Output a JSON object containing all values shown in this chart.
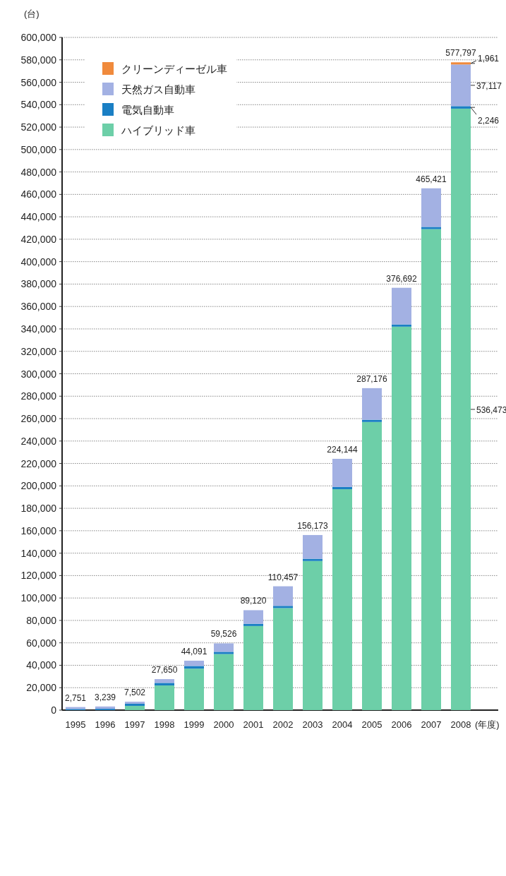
{
  "chart_data": {
    "type": "bar",
    "stacked": true,
    "xlabel": "(年度)",
    "ylabel": "(台)",
    "categories": [
      "1995",
      "1996",
      "1997",
      "1998",
      "1999",
      "2000",
      "2001",
      "2002",
      "2003",
      "2004",
      "2005",
      "2006",
      "2007",
      "2008"
    ],
    "series": [
      {
        "name": "ハイブリッド車",
        "color": "#6dcfa8",
        "values": [
          0,
          0,
          3800,
          22000,
          37000,
          50000,
          75000,
          91000,
          133000,
          197000,
          257000,
          342000,
          429000,
          536473
        ],
        "value_labels": [
          null,
          null,
          null,
          null,
          null,
          null,
          null,
          null,
          null,
          null,
          null,
          null,
          null,
          "536,473"
        ]
      },
      {
        "name": "電気自動車",
        "color": "#1a7fc4",
        "values": [
          1000,
          1200,
          1900,
          2300,
          2400,
          2000,
          2000,
          2000,
          2000,
          2000,
          2000,
          2000,
          2000,
          2246
        ],
        "value_labels": [
          null,
          null,
          null,
          null,
          null,
          null,
          null,
          null,
          null,
          null,
          null,
          null,
          null,
          "2,246"
        ]
      },
      {
        "name": "天然ガス自動車",
        "color": "#a3b1e3",
        "values": [
          1751,
          2039,
          1802,
          3350,
          4691,
          7526,
          12120,
          17457,
          21173,
          25144,
          28176,
          32692,
          34421,
          37117
        ],
        "value_labels": [
          null,
          null,
          null,
          null,
          null,
          null,
          null,
          null,
          null,
          null,
          null,
          null,
          null,
          "37,117"
        ]
      },
      {
        "name": "クリーンディーゼル車",
        "color": "#f08a3c",
        "values": [
          null,
          null,
          null,
          null,
          null,
          null,
          null,
          null,
          null,
          null,
          null,
          null,
          null,
          1961
        ],
        "value_labels": [
          null,
          null,
          null,
          null,
          null,
          null,
          null,
          null,
          null,
          null,
          null,
          null,
          null,
          "1,961"
        ]
      }
    ],
    "totals": [
      "2,751",
      "3,239",
      "7,502",
      "27,650",
      "44,091",
      "59,526",
      "89,120",
      "110,457",
      "156,173",
      "224,144",
      "287,176",
      "376,692",
      "465,421",
      "577,797"
    ],
    "ylim": [
      0,
      600000
    ],
    "yticks": [
      {
        "value": 0,
        "label": "0"
      },
      {
        "value": 20000,
        "label": "20,000"
      },
      {
        "value": 40000,
        "label": "40,000"
      },
      {
        "value": 60000,
        "label": "60,000"
      },
      {
        "value": 80000,
        "label": "80,000"
      },
      {
        "value": 100000,
        "label": "100,000"
      },
      {
        "value": 120000,
        "label": "120,000"
      },
      {
        "value": 140000,
        "label": "140,000"
      },
      {
        "value": 160000,
        "label": "160,000"
      },
      {
        "value": 180000,
        "label": "180,000"
      },
      {
        "value": 200000,
        "label": "200,000"
      },
      {
        "value": 220000,
        "label": "220,000"
      },
      {
        "value": 240000,
        "label": "240,000"
      },
      {
        "value": 260000,
        "label": "260,000"
      },
      {
        "value": 280000,
        "label": "280,000"
      },
      {
        "value": 300000,
        "label": "300,000"
      },
      {
        "value": 320000,
        "label": "320,000"
      },
      {
        "value": 340000,
        "label": "340,000"
      },
      {
        "value": 360000,
        "label": "360,000"
      },
      {
        "value": 380000,
        "label": "380,000"
      },
      {
        "value": 400000,
        "label": "400,000"
      },
      {
        "value": 420000,
        "label": "420,000"
      },
      {
        "value": 440000,
        "label": "440,000"
      },
      {
        "value": 460000,
        "label": "460,000"
      },
      {
        "value": 480000,
        "label": "480,000"
      },
      {
        "value": 500000,
        "label": "500,000"
      },
      {
        "value": 520000,
        "label": "520,000"
      },
      {
        "value": 540000,
        "label": "540,000"
      },
      {
        "value": 560000,
        "label": "560,000"
      },
      {
        "value": 580000,
        "label": "580,000"
      },
      {
        "value": 600000,
        "label": "600,000"
      }
    ],
    "grid": "y",
    "legend": "top left"
  }
}
